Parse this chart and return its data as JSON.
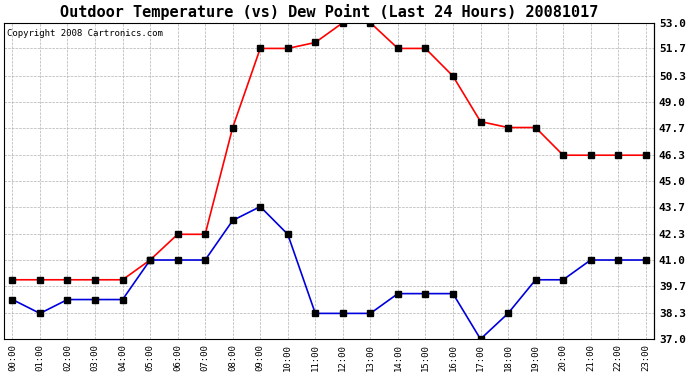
{
  "title": "Outdoor Temperature (vs) Dew Point (Last 24 Hours) 20081017",
  "copyright": "Copyright 2008 Cartronics.com",
  "hours": [
    "00:00",
    "01:00",
    "02:00",
    "03:00",
    "04:00",
    "05:00",
    "06:00",
    "07:00",
    "08:00",
    "09:00",
    "10:00",
    "11:00",
    "12:00",
    "13:00",
    "14:00",
    "15:00",
    "16:00",
    "17:00",
    "18:00",
    "19:00",
    "20:00",
    "21:00",
    "22:00",
    "23:00"
  ],
  "temp": [
    40.0,
    40.0,
    40.0,
    40.0,
    40.0,
    41.0,
    42.3,
    42.3,
    47.7,
    51.7,
    51.7,
    52.0,
    53.0,
    53.0,
    51.7,
    51.7,
    50.3,
    48.0,
    47.7,
    47.7,
    46.3,
    46.3,
    46.3,
    46.3
  ],
  "dew": [
    39.0,
    38.3,
    39.0,
    39.0,
    39.0,
    41.0,
    41.0,
    41.0,
    43.0,
    43.7,
    42.3,
    38.3,
    38.3,
    38.3,
    39.3,
    39.3,
    39.3,
    37.0,
    38.3,
    40.0,
    40.0,
    41.0,
    41.0,
    41.0
  ],
  "ylim": [
    37.0,
    53.0
  ],
  "yticks": [
    37.0,
    38.3,
    39.7,
    41.0,
    42.3,
    43.7,
    45.0,
    46.3,
    47.7,
    49.0,
    50.3,
    51.7,
    53.0
  ],
  "ytick_labels": [
    "37.0",
    "38.3",
    "39.7",
    "41.0",
    "42.3",
    "43.7",
    "45.0",
    "46.3",
    "47.7",
    "49.0",
    "50.3",
    "51.7",
    "53.0"
  ],
  "temp_color": "#ff0000",
  "dew_color": "#0000dd",
  "background_color": "#ffffff",
  "plot_bg_color": "#ffffff",
  "grid_color": "#aaaaaa",
  "title_fontsize": 11,
  "copyright_fontsize": 6.5,
  "tick_fontsize": 8,
  "xtick_fontsize": 6.5
}
